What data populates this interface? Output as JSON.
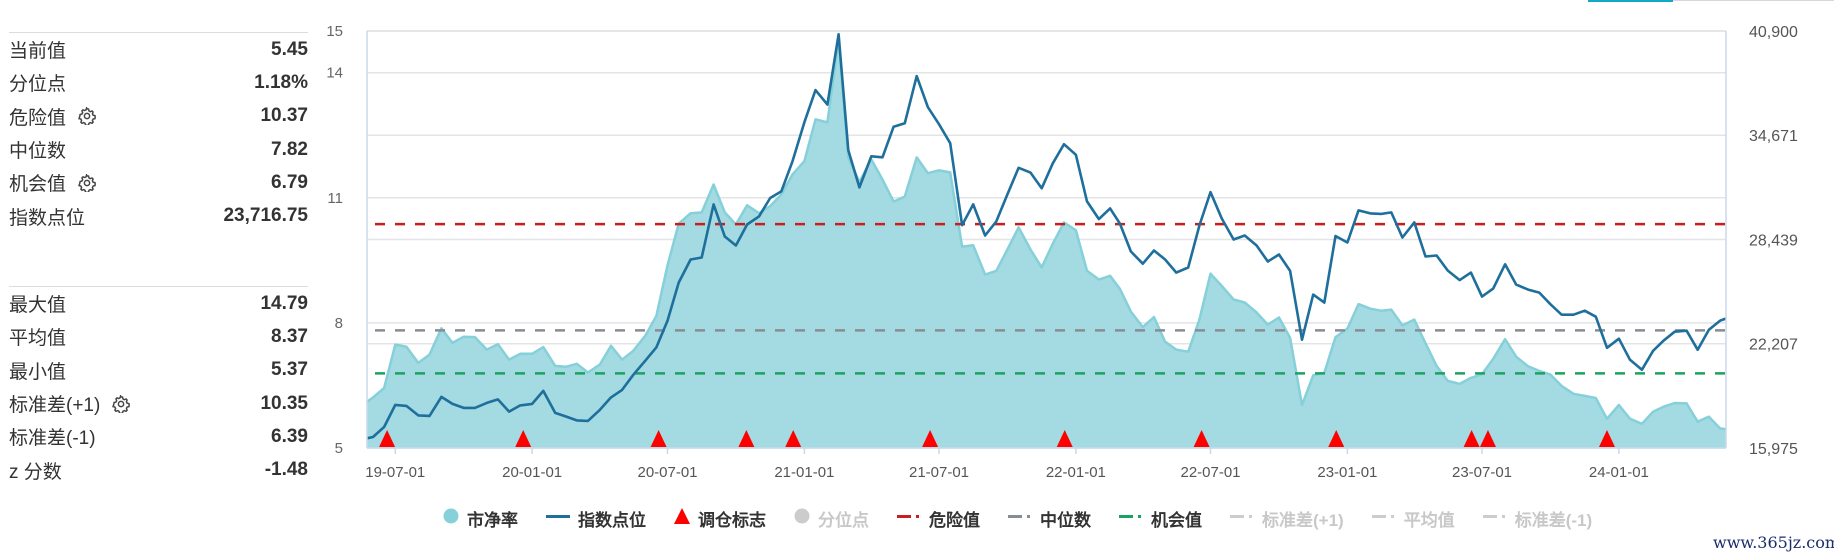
{
  "stats_panel": {
    "group1": [
      {
        "label": "当前值",
        "value": "5.45",
        "has_gear": false
      },
      {
        "label": "分位点",
        "value": "1.18%",
        "has_gear": false
      },
      {
        "label": "危险值",
        "value": "10.37",
        "has_gear": true
      },
      {
        "label": "中位数",
        "value": "7.82",
        "has_gear": false
      },
      {
        "label": "机会值",
        "value": "6.79",
        "has_gear": true
      },
      {
        "label": "指数点位",
        "value": "23,716.75",
        "has_gear": false
      }
    ],
    "group2": [
      {
        "label": "最大值",
        "value": "14.79",
        "has_gear": false
      },
      {
        "label": "平均值",
        "value": "8.37",
        "has_gear": false
      },
      {
        "label": "最小值",
        "value": "5.37",
        "has_gear": false
      },
      {
        "label": "标准差(+1)",
        "value": "10.35",
        "has_gear": true
      },
      {
        "label": "标准差(-1)",
        "value": "6.39",
        "has_gear": false
      },
      {
        "label": "z 分数",
        "value": "-1.48",
        "has_gear": false
      }
    ]
  },
  "chart_data": {
    "type": "line",
    "grid": true,
    "legend_position": "bottom",
    "xlim": [
      "2019-05-24",
      "2024-05-24"
    ],
    "x": [
      "2019-05-24",
      "2019-06-01",
      "2019-06-16",
      "2019-07-01",
      "2019-07-16",
      "2019-08-01",
      "2019-08-16",
      "2019-09-01",
      "2019-09-16",
      "2019-10-01",
      "2019-10-16",
      "2019-11-01",
      "2019-11-16",
      "2019-12-01",
      "2019-12-16",
      "2020-01-01",
      "2020-01-16",
      "2020-02-01",
      "2020-02-16",
      "2020-03-01",
      "2020-03-16",
      "2020-04-01",
      "2020-04-16",
      "2020-05-01",
      "2020-05-16",
      "2020-06-01",
      "2020-06-16",
      "2020-07-01",
      "2020-07-16",
      "2020-08-01",
      "2020-08-16",
      "2020-09-01",
      "2020-09-16",
      "2020-10-01",
      "2020-10-16",
      "2020-11-01",
      "2020-11-16",
      "2020-12-01",
      "2020-12-16",
      "2021-01-01",
      "2021-01-16",
      "2021-02-01",
      "2021-02-16",
      "2021-03-01",
      "2021-03-16",
      "2021-04-01",
      "2021-04-16",
      "2021-05-01",
      "2021-05-16",
      "2021-06-01",
      "2021-06-16",
      "2021-07-01",
      "2021-07-16",
      "2021-08-01",
      "2021-08-16",
      "2021-09-01",
      "2021-09-16",
      "2021-10-01",
      "2021-10-16",
      "2021-11-01",
      "2021-11-16",
      "2021-12-01",
      "2021-12-16",
      "2022-01-01",
      "2022-01-16",
      "2022-02-01",
      "2022-02-16",
      "2022-03-01",
      "2022-03-16",
      "2022-04-01",
      "2022-04-16",
      "2022-05-01",
      "2022-05-16",
      "2022-06-01",
      "2022-06-16",
      "2022-07-01",
      "2022-07-16",
      "2022-08-01",
      "2022-08-16",
      "2022-09-01",
      "2022-09-16",
      "2022-10-01",
      "2022-10-16",
      "2022-11-01",
      "2022-11-16",
      "2022-12-01",
      "2022-12-16",
      "2023-01-01",
      "2023-01-16",
      "2023-02-01",
      "2023-02-16",
      "2023-03-01",
      "2023-03-16",
      "2023-04-01",
      "2023-04-16",
      "2023-05-01",
      "2023-05-16",
      "2023-06-01",
      "2023-06-16",
      "2023-07-01",
      "2023-07-16",
      "2023-08-01",
      "2023-08-16",
      "2023-09-01",
      "2023-09-16",
      "2023-10-01",
      "2023-10-16",
      "2023-11-01",
      "2023-11-16",
      "2023-12-01",
      "2023-12-16",
      "2024-01-01",
      "2024-01-16",
      "2024-02-01",
      "2024-02-16",
      "2024-03-01",
      "2024-03-16",
      "2024-04-01",
      "2024-04-16",
      "2024-05-01",
      "2024-05-16",
      "2024-05-24"
    ],
    "series": [
      {
        "name": "市净率",
        "style": "area",
        "axis": "left",
        "color": "#86d0d9",
        "fill": "#a2d9e0",
        "values": [
          6.11,
          6.21,
          6.44,
          7.48,
          7.43,
          7.04,
          7.24,
          7.87,
          7.52,
          7.67,
          7.66,
          7.36,
          7.49,
          7.12,
          7.26,
          7.26,
          7.42,
          6.97,
          6.95,
          7.02,
          6.81,
          7.0,
          7.45,
          7.12,
          7.33,
          7.69,
          8.17,
          9.38,
          10.38,
          10.63,
          10.65,
          11.32,
          10.65,
          10.36,
          10.82,
          10.63,
          10.8,
          11.08,
          11.56,
          11.88,
          12.88,
          12.81,
          14.79,
          11.97,
          11.38,
          11.92,
          11.44,
          10.91,
          11.03,
          11.97,
          11.59,
          11.66,
          11.61,
          9.83,
          9.86,
          9.16,
          9.25,
          9.76,
          10.29,
          9.76,
          9.33,
          9.9,
          10.41,
          10.22,
          9.25,
          9.04,
          9.13,
          8.82,
          8.27,
          7.9,
          8.14,
          7.55,
          7.36,
          7.31,
          8.08,
          9.18,
          8.89,
          8.56,
          8.49,
          8.25,
          7.96,
          8.13,
          7.64,
          6.03,
          6.74,
          6.8,
          7.66,
          7.86,
          8.45,
          8.34,
          8.29,
          8.32,
          7.94,
          8.08,
          7.51,
          6.97,
          6.61,
          6.54,
          6.68,
          6.77,
          7.14,
          7.61,
          7.19,
          6.96,
          6.85,
          6.76,
          6.49,
          6.3,
          6.25,
          6.2,
          5.7,
          6.03,
          5.7,
          5.58,
          5.87,
          5.99,
          6.08,
          6.07,
          5.63,
          5.75,
          5.47,
          5.45
        ]
      },
      {
        "name": "指数点位",
        "style": "line",
        "axis": "right",
        "color": "#1e6f9c",
        "values": [
          16556,
          16634,
          17233,
          18552,
          18492,
          17922,
          17892,
          19031,
          18612,
          18372,
          18372,
          18672,
          18881,
          18150,
          18522,
          18612,
          19390,
          18072,
          17851,
          17623,
          17593,
          18252,
          19001,
          19450,
          20349,
          21188,
          21997,
          23585,
          25862,
          27240,
          27360,
          30536,
          28619,
          28079,
          29337,
          29816,
          30917,
          31315,
          33112,
          35449,
          37367,
          36498,
          40700,
          33771,
          31554,
          33412,
          33352,
          35179,
          35389,
          38205,
          36348,
          35329,
          34191,
          29295,
          30536,
          28678,
          29517,
          31135,
          32723,
          32435,
          31495,
          32992,
          34131,
          33502,
          30716,
          29655,
          30296,
          29397,
          27719,
          26994,
          27779,
          27240,
          26461,
          26761,
          29277,
          31273,
          29697,
          28439,
          28678,
          28079,
          27120,
          27540,
          26563,
          22446,
          25143,
          24664,
          28648,
          28259,
          30176,
          29996,
          29966,
          30056,
          28558,
          29457,
          27420,
          27480,
          26581,
          26012,
          26461,
          25023,
          25502,
          26958,
          25742,
          25442,
          25263,
          24562,
          23944,
          23944,
          24184,
          23825,
          21967,
          22506,
          21248,
          20649,
          21787,
          22387,
          22926,
          22986,
          21847,
          23045,
          23585,
          23717
        ]
      }
    ],
    "rebalance_markers": {
      "name": "调仓标志",
      "color": "#ff0000",
      "dates": [
        "2019-06-20",
        "2019-12-20",
        "2020-06-19",
        "2020-10-15",
        "2020-12-17",
        "2021-06-19",
        "2021-12-17",
        "2022-06-19",
        "2022-12-17",
        "2023-06-17",
        "2023-07-09",
        "2023-12-16"
      ]
    },
    "reference_lines": [
      {
        "name": "危险值",
        "value": 10.37,
        "color": "#c81e1e"
      },
      {
        "name": "中位数",
        "value": 7.82,
        "color": "#888d94"
      },
      {
        "name": "机会值",
        "value": 6.79,
        "color": "#1aa260"
      }
    ],
    "left_axis": {
      "range": [
        5,
        15
      ],
      "ticks": [
        5,
        8,
        11,
        14,
        15
      ],
      "labels": [
        "5",
        "8",
        "11",
        "14",
        "15"
      ]
    },
    "right_axis": {
      "range": [
        15975,
        40900
      ],
      "ticks": [
        15975,
        22207,
        28439,
        34671,
        40900
      ],
      "labels": [
        "15,975",
        "22,207",
        "28,439",
        "34,671",
        "40,900"
      ]
    },
    "x_ticks": [
      {
        "date": "2019-07-01",
        "label": "19-07-01"
      },
      {
        "date": "2020-01-01",
        "label": "20-01-01"
      },
      {
        "date": "2020-07-01",
        "label": "20-07-01"
      },
      {
        "date": "2021-01-01",
        "label": "21-01-01"
      },
      {
        "date": "2021-07-01",
        "label": "21-07-01"
      },
      {
        "date": "2022-01-01",
        "label": "22-01-01"
      },
      {
        "date": "2022-07-01",
        "label": "22-07-01"
      },
      {
        "date": "2023-01-01",
        "label": "23-01-01"
      },
      {
        "date": "2023-07-01",
        "label": "23-07-01"
      },
      {
        "date": "2024-01-01",
        "label": "24-01-01"
      }
    ],
    "legend": [
      {
        "label": "市净率",
        "icon": "circle",
        "color": "#86d0d9",
        "enabled": true
      },
      {
        "label": "指数点位",
        "icon": "line",
        "color": "#1e6f9c",
        "enabled": true
      },
      {
        "label": "调仓标志",
        "icon": "triangle",
        "color": "#ff0000",
        "enabled": true
      },
      {
        "label": "分位点",
        "icon": "circle",
        "color": "#cccccc",
        "enabled": false
      },
      {
        "label": "危险值",
        "icon": "dash-dot",
        "color": "#c81e1e",
        "enabled": true
      },
      {
        "label": "中位数",
        "icon": "dash-dot",
        "color": "#888d94",
        "enabled": true
      },
      {
        "label": "机会值",
        "icon": "dash-dot",
        "color": "#1aa260",
        "enabled": true
      },
      {
        "label": "标准差(+1)",
        "icon": "dash-dot",
        "color": "#cccccc",
        "enabled": false
      },
      {
        "label": "平均值",
        "icon": "dash-dot",
        "color": "#cccccc",
        "enabled": false
      },
      {
        "label": "标准差(-1)",
        "icon": "dash-dot",
        "color": "#cccccc",
        "enabled": false
      }
    ]
  },
  "watermark": "www.365jz.com"
}
